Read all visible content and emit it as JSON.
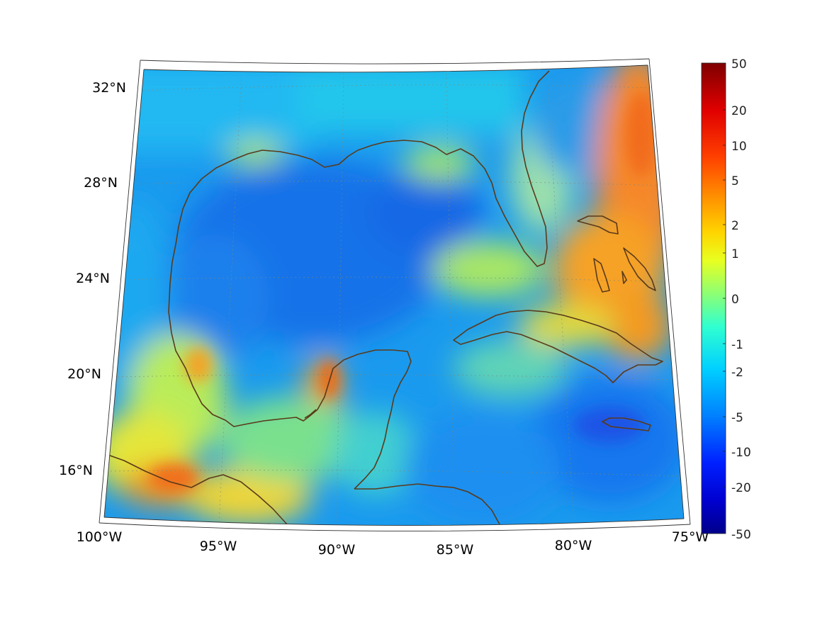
{
  "map": {
    "projection": "conic",
    "longitude_labels": [
      "100°W",
      "95°W",
      "90°W",
      "85°W",
      "80°W",
      "75°W"
    ],
    "latitude_labels": [
      "32°N",
      "28°N",
      "24°N",
      "20°N",
      "16°N"
    ],
    "grid": true,
    "coastline_color": "#5a3a1a"
  },
  "colorbar": {
    "colormap": "jet",
    "tick_labels": [
      "50",
      "20",
      "10",
      "5",
      "2",
      "1",
      "0",
      "-1",
      "-2",
      "-5",
      "-10",
      "-20",
      "-50"
    ],
    "low_color": "#00008b",
    "high_color": "#800000"
  }
}
